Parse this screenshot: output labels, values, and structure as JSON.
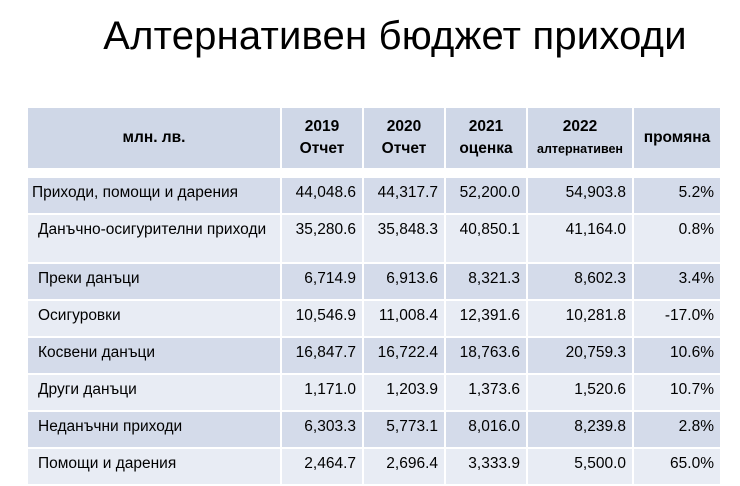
{
  "title": "Алтернативен бюджет приходи",
  "table": {
    "headers": [
      {
        "l1": "",
        "l2": "млн. лв."
      },
      {
        "l1": "2019",
        "l2": "Отчет"
      },
      {
        "l1": "2020",
        "l2": "Отчет"
      },
      {
        "l1": "2021",
        "l2": "оценка"
      },
      {
        "l1": "2022",
        "l2": "алтернативен"
      },
      {
        "l1": "",
        "l2": "промяна"
      }
    ],
    "rows": [
      {
        "name": "Приходи, помощи и дарения",
        "v2019": "44,048.6",
        "v2020": "44,317.7",
        "v2021": "52,200.0",
        "v2022": "54,903.8",
        "change": "5.2%"
      },
      {
        "name": "Данъчно-осигурителни приходи",
        "v2019": "35,280.6",
        "v2020": "35,848.3",
        "v2021": "40,850.1",
        "v2022": "41,164.0",
        "change": "0.8%"
      },
      {
        "name": "Преки данъци",
        "v2019": "6,714.9",
        "v2020": "6,913.6",
        "v2021": "8,321.3",
        "v2022": "8,602.3",
        "change": "3.4%"
      },
      {
        "name": "Осигуровки",
        "v2019": "10,546.9",
        "v2020": "11,008.4",
        "v2021": "12,391.6",
        "v2022": "10,281.8",
        "change": "-17.0%"
      },
      {
        "name": "Косвени данъци",
        "v2019": "16,847.7",
        "v2020": "16,722.4",
        "v2021": "18,763.6",
        "v2022": "20,759.3",
        "change": "10.6%"
      },
      {
        "name": "Други данъци",
        "v2019": "1,171.0",
        "v2020": "1,203.9",
        "v2021": "1,373.6",
        "v2022": "1,520.6",
        "change": "10.7%"
      },
      {
        "name": "Неданъчни приходи",
        "v2019": "6,303.3",
        "v2020": "5,773.1",
        "v2021": "8,016.0",
        "v2022": "8,239.8",
        "change": "2.8%"
      },
      {
        "name": "Помощи и дарения",
        "v2019": "2,464.7",
        "v2020": "2,696.4",
        "v2021": "3,333.9",
        "v2022": "5,500.0",
        "change": "65.0%"
      }
    ]
  }
}
